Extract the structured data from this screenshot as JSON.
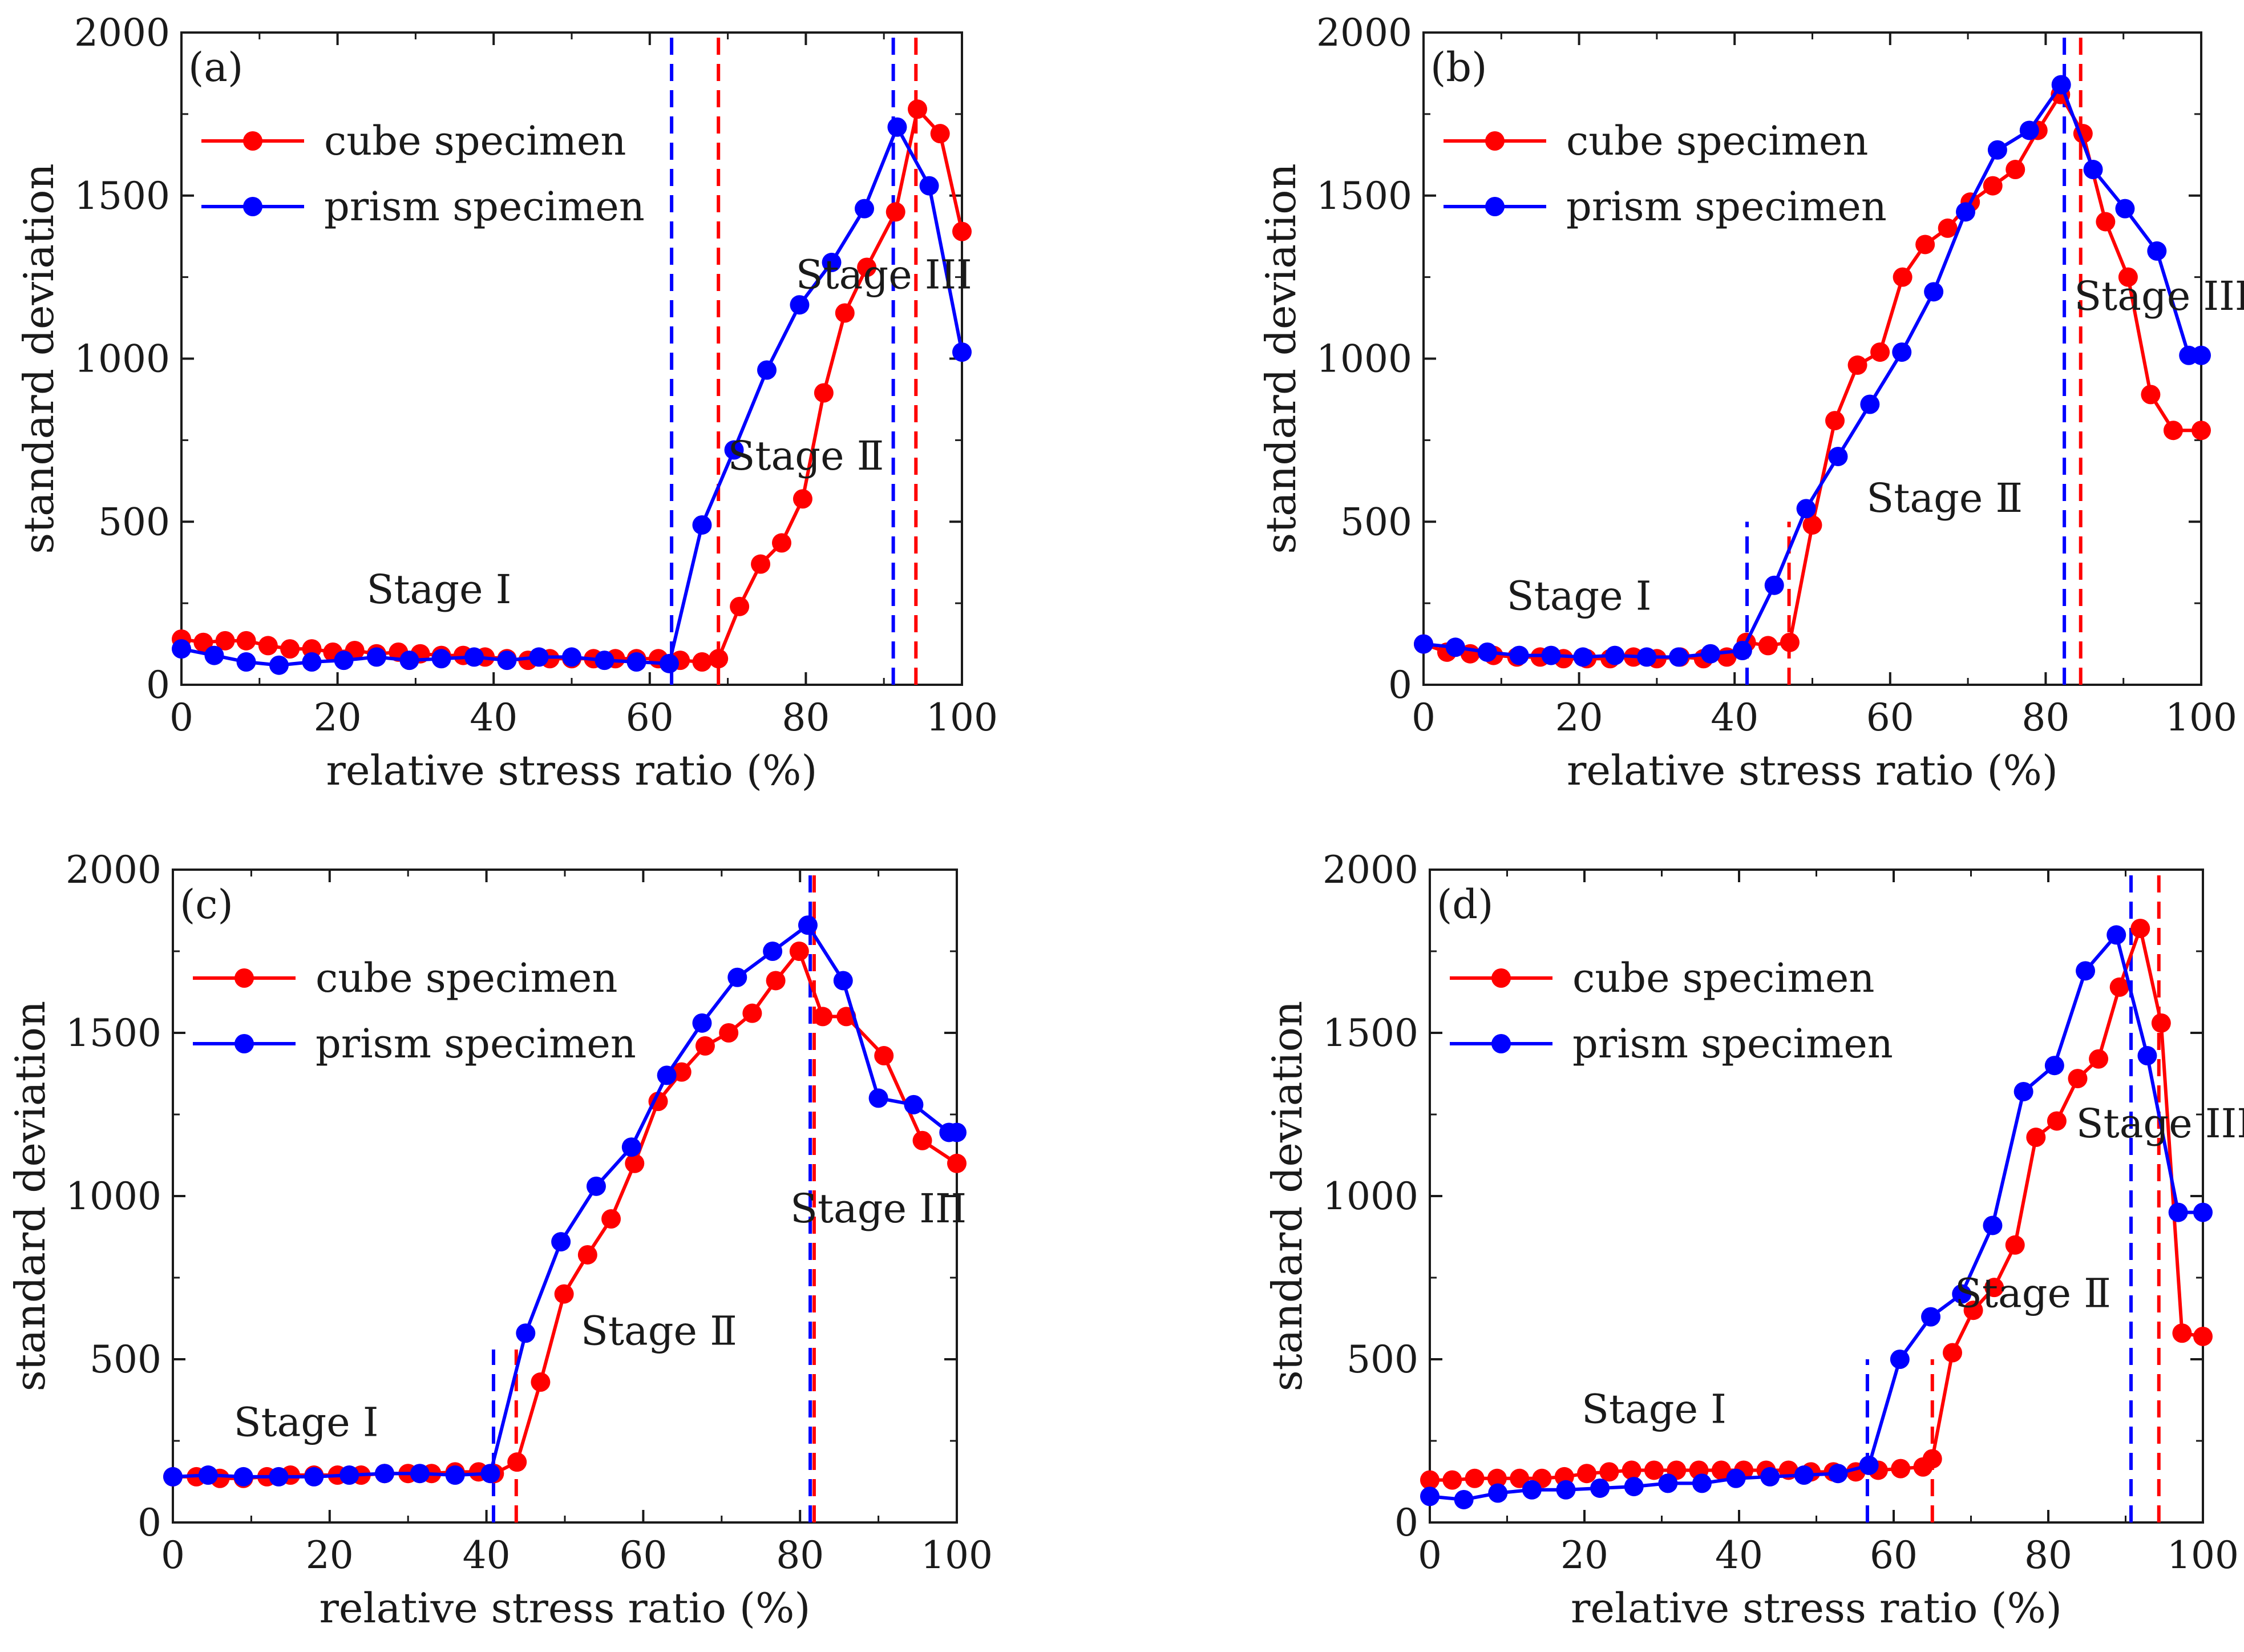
{
  "figure": {
    "legend": {
      "cube_label": "cube specimen",
      "prism_label": "prism specimen"
    },
    "colors": {
      "cube": "#ff0000",
      "prism": "#0000ff",
      "axis": "#1a1a1a"
    }
  },
  "chart_data": [
    {
      "type": "line",
      "panel_label": "(a)",
      "xlabel": "relative stress ratio (%)",
      "ylabel": "standard deviation",
      "xlim": [
        0,
        100
      ],
      "ylim": [
        0,
        2000
      ],
      "xticks": [
        "0",
        "20",
        "40",
        "60",
        "80",
        "100"
      ],
      "yticks": [
        "0",
        "500",
        "1000",
        "1500",
        "2000"
      ],
      "series": [
        {
          "name": "cube specimen",
          "color": "#ff0000",
          "x": [
            0,
            2.8,
            5.6,
            8.3,
            11.1,
            13.9,
            16.7,
            19.4,
            22.2,
            25,
            27.8,
            30.6,
            33.3,
            36.1,
            38.9,
            41.7,
            44.4,
            47.2,
            50,
            52.8,
            55.6,
            58.3,
            61.1,
            63.9,
            66.7,
            68.8,
            71.5,
            74.2,
            76.9,
            79.6,
            82.3,
            85,
            87.8,
            91.5,
            94.3,
            97.2,
            100
          ],
          "y": [
            140,
            130,
            135,
            135,
            120,
            110,
            110,
            100,
            105,
            95,
            100,
            95,
            90,
            90,
            85,
            80,
            75,
            80,
            80,
            80,
            80,
            80,
            80,
            75,
            70,
            80,
            240,
            370,
            435,
            570,
            895,
            1140,
            1280,
            1450,
            1765,
            1690,
            1390
          ]
        },
        {
          "name": "prism specimen",
          "color": "#0000ff",
          "x": [
            0,
            4.2,
            8.3,
            12.5,
            16.7,
            20.8,
            25,
            29.2,
            33.3,
            37.5,
            41.7,
            45.8,
            50,
            54.2,
            58.3,
            62.5,
            66.7,
            70.8,
            75,
            79.2,
            83.3,
            87.5,
            91.7,
            95.8,
            100
          ],
          "y": [
            110,
            90,
            70,
            60,
            70,
            75,
            85,
            75,
            80,
            85,
            75,
            85,
            85,
            75,
            70,
            65,
            490,
            720,
            965,
            1165,
            1295,
            1460,
            1710,
            1530,
            1020
          ]
        }
      ],
      "markers": [
        {
          "x": 62.8,
          "y0": 0,
          "y1": 2000,
          "color": "#0000ff"
        },
        {
          "x": 68.8,
          "y0": 0,
          "y1": 2000,
          "color": "#ff0000"
        },
        {
          "x": 91.2,
          "y0": 0,
          "y1": 2000,
          "color": "#0000ff"
        },
        {
          "x": 94.1,
          "y0": 0,
          "y1": 2000,
          "color": "#ff0000"
        }
      ],
      "annotations": [
        {
          "text": "Stage Ⅰ",
          "x": 33,
          "y": 250
        },
        {
          "text": "Stage Ⅱ",
          "x": 80,
          "y": 660
        },
        {
          "text": "Stage III",
          "x": 90,
          "y": 1215
        }
      ]
    },
    {
      "type": "line",
      "panel_label": "(b)",
      "xlabel": "relative stress ratio (%)",
      "ylabel": "standard deviation",
      "xlim": [
        0,
        100
      ],
      "ylim": [
        0,
        2000
      ],
      "xticks": [
        "0",
        "20",
        "40",
        "60",
        "80",
        "100"
      ],
      "yticks": [
        "0",
        "500",
        "1000",
        "1500",
        "2000"
      ],
      "series": [
        {
          "name": "cube specimen",
          "color": "#ff0000",
          "x": [
            0,
            3,
            6,
            9,
            12,
            15,
            18,
            21,
            24,
            27,
            30,
            33,
            36,
            39,
            41.5,
            44.3,
            47.1,
            50,
            52.9,
            55.8,
            58.7,
            61.6,
            64.5,
            67.4,
            70.3,
            73.2,
            76.1,
            79,
            81.9,
            84.8,
            87.7,
            90.6,
            93.5,
            96.4,
            100
          ],
          "y": [
            125,
            100,
            95,
            90,
            85,
            85,
            80,
            80,
            80,
            85,
            80,
            85,
            80,
            85,
            130,
            120,
            130,
            490,
            810,
            980,
            1020,
            1250,
            1350,
            1400,
            1480,
            1530,
            1580,
            1700,
            1810,
            1690,
            1420,
            1250,
            890,
            780,
            780
          ]
        },
        {
          "name": "prism specimen",
          "color": "#0000ff",
          "x": [
            0,
            4.1,
            8.2,
            12.3,
            16.4,
            20.5,
            24.6,
            28.7,
            32.8,
            36.9,
            41,
            45.1,
            49.2,
            53.3,
            57.4,
            61.5,
            65.6,
            69.7,
            73.8,
            77.9,
            82,
            86.1,
            90.2,
            94.3,
            98.4,
            100
          ],
          "y": [
            125,
            115,
            100,
            90,
            90,
            85,
            90,
            85,
            85,
            95,
            105,
            305,
            540,
            700,
            860,
            1020,
            1205,
            1450,
            1640,
            1700,
            1840,
            1580,
            1460,
            1330,
            1010,
            1010
          ]
        }
      ],
      "markers": [
        {
          "x": 41.6,
          "y0": 0,
          "y1": 500,
          "color": "#0000ff"
        },
        {
          "x": 47,
          "y0": 0,
          "y1": 500,
          "color": "#ff0000"
        },
        {
          "x": 82.4,
          "y0": 0,
          "y1": 2000,
          "color": "#0000ff"
        },
        {
          "x": 84.5,
          "y0": 0,
          "y1": 2000,
          "color": "#ff0000"
        }
      ],
      "annotations": [
        {
          "text": "Stage Ⅰ",
          "x": 20,
          "y": 230
        },
        {
          "text": "Stage Ⅱ",
          "x": 67,
          "y": 530
        },
        {
          "text": "Stage III",
          "x": 95,
          "y": 1150
        }
      ]
    },
    {
      "type": "line",
      "panel_label": "(c)",
      "xlabel": "relative stress ratio (%)",
      "ylabel": "standard deviation",
      "xlim": [
        0,
        100
      ],
      "ylim": [
        0,
        2000
      ],
      "xticks": [
        "0",
        "20",
        "40",
        "60",
        "80",
        "100"
      ],
      "yticks": [
        "0",
        "500",
        "1000",
        "1500",
        "2000"
      ],
      "series": [
        {
          "name": "cube specimen",
          "color": "#ff0000",
          "x": [
            0,
            3,
            6,
            9,
            12,
            15,
            18,
            21,
            24,
            27,
            30,
            33,
            36,
            39,
            41,
            43.9,
            46.9,
            49.9,
            52.9,
            55.9,
            58.9,
            61.9,
            64.9,
            67.9,
            70.9,
            73.9,
            76.9,
            79.9,
            82.9,
            85.9,
            90.7,
            95.6,
            100
          ],
          "y": [
            140,
            140,
            135,
            135,
            140,
            145,
            145,
            145,
            145,
            150,
            150,
            150,
            155,
            155,
            150,
            185,
            430,
            700,
            820,
            930,
            1100,
            1290,
            1380,
            1460,
            1500,
            1560,
            1660,
            1750,
            1550,
            1550,
            1430,
            1170,
            1100
          ]
        },
        {
          "name": "prism specimen",
          "color": "#0000ff",
          "x": [
            0,
            4.5,
            9,
            13.5,
            18,
            22.5,
            27,
            31.5,
            36,
            40.5,
            45,
            49.5,
            54,
            58.5,
            63,
            67.5,
            72,
            76.5,
            81,
            85.5,
            90,
            94.5,
            99,
            100
          ],
          "y": [
            140,
            145,
            140,
            140,
            140,
            145,
            150,
            150,
            145,
            150,
            580,
            860,
            1030,
            1150,
            1370,
            1530,
            1670,
            1750,
            1830,
            1660,
            1300,
            1280,
            1195,
            1195
          ]
        }
      ],
      "markers": [
        {
          "x": 40.9,
          "y0": 0,
          "y1": 530,
          "color": "#0000ff"
        },
        {
          "x": 43.8,
          "y0": 0,
          "y1": 530,
          "color": "#ff0000"
        },
        {
          "x": 81.3,
          "y0": 0,
          "y1": 2000,
          "color": "#0000ff"
        },
        {
          "x": 81.8,
          "y0": 0,
          "y1": 2000,
          "color": "#ff0000"
        }
      ],
      "annotations": [
        {
          "text": "Stage Ⅰ",
          "x": 17,
          "y": 265
        },
        {
          "text": "Stage Ⅱ",
          "x": 62,
          "y": 545
        },
        {
          "text": "Stage III",
          "x": 90,
          "y": 920
        }
      ]
    },
    {
      "type": "line",
      "panel_label": "(d)",
      "xlabel": "relative stress ratio (%)",
      "ylabel": "standard deviation",
      "xlim": [
        0,
        100
      ],
      "ylim": [
        0,
        2000
      ],
      "xticks": [
        "0",
        "20",
        "40",
        "60",
        "80",
        "100"
      ],
      "yticks": [
        "0",
        "500",
        "1000",
        "1500",
        "2000"
      ],
      "series": [
        {
          "name": "cube specimen",
          "color": "#ff0000",
          "x": [
            0,
            2.9,
            5.8,
            8.7,
            11.6,
            14.5,
            17.4,
            20.3,
            23.2,
            26.1,
            29,
            31.9,
            34.8,
            37.7,
            40.6,
            43.5,
            46.4,
            49.3,
            52.2,
            55.1,
            58,
            60.9,
            63.8,
            65,
            67.6,
            70.3,
            73,
            75.7,
            78.4,
            81.1,
            83.8,
            86.5,
            89.2,
            91.9,
            94.6,
            97.3,
            100
          ],
          "y": [
            130,
            130,
            135,
            135,
            135,
            135,
            140,
            150,
            155,
            160,
            160,
            160,
            160,
            160,
            160,
            160,
            160,
            155,
            155,
            155,
            160,
            165,
            170,
            195,
            520,
            650,
            720,
            850,
            1180,
            1230,
            1360,
            1420,
            1640,
            1820,
            1530,
            580,
            570
          ]
        },
        {
          "name": "prism specimen",
          "color": "#0000ff",
          "x": [
            0,
            4.4,
            8.8,
            13.2,
            17.6,
            22,
            26.4,
            30.8,
            35.2,
            39.6,
            44,
            48.4,
            52.8,
            56.8,
            60.8,
            64.8,
            68.8,
            72.8,
            76.8,
            80.8,
            84.8,
            88.8,
            92.8,
            96.8,
            100
          ],
          "y": [
            80,
            70,
            90,
            100,
            100,
            105,
            110,
            120,
            120,
            135,
            140,
            145,
            150,
            175,
            500,
            630,
            700,
            910,
            1320,
            1400,
            1690,
            1800,
            1430,
            950,
            950
          ]
        }
      ],
      "markers": [
        {
          "x": 56.6,
          "y0": 0,
          "y1": 500,
          "color": "#0000ff"
        },
        {
          "x": 65,
          "y0": 0,
          "y1": 500,
          "color": "#ff0000"
        },
        {
          "x": 90.7,
          "y0": 0,
          "y1": 2000,
          "color": "#0000ff"
        },
        {
          "x": 94.3,
          "y0": 0,
          "y1": 2000,
          "color": "#ff0000"
        }
      ],
      "annotations": [
        {
          "text": "Stage Ⅰ",
          "x": 29,
          "y": 305
        },
        {
          "text": "Stage Ⅱ",
          "x": 78,
          "y": 660
        },
        {
          "text": "Stage III",
          "x": 95,
          "y": 1180
        }
      ]
    }
  ]
}
